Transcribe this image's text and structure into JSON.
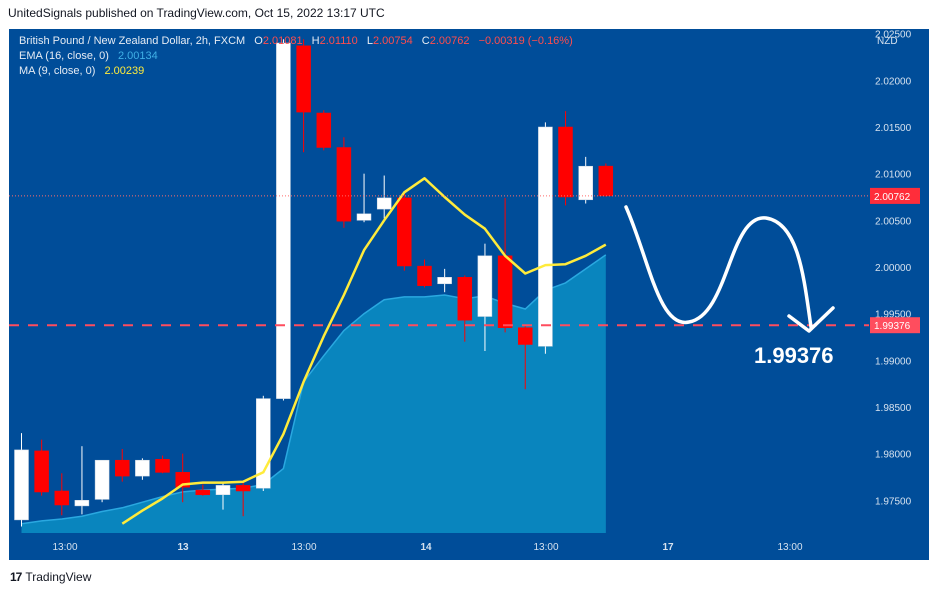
{
  "header": {
    "publisher": "UnitedSignals published on TradingView.com, Oct 15, 2022 13:17 UTC"
  },
  "legend": {
    "symbol": "British Pound / New Zealand Dollar, 2h, FXCM",
    "o_label": "O",
    "o": "2.01081",
    "h_label": "H",
    "h": "2.01110",
    "l_label": "L",
    "l": "2.00754",
    "c_label": "C",
    "c": "2.00762",
    "change": "−0.00319 (−0.16%)",
    "ema_label": "EMA (16, close, 0)",
    "ema_value": "2.00134",
    "ma_label": "MA (9, close, 0)",
    "ma_value": "2.00239"
  },
  "footer": {
    "brand": "TradingView",
    "logo_glyph": "17"
  },
  "colors": {
    "background": "#004d99",
    "bull": "#ffffff",
    "bear": "#ff0000",
    "ema_fill": "#0a8fc4",
    "ma_line": "#ffeb3b",
    "target": "#ff4d5e",
    "last_price_tag": "#ff2d3a",
    "projection": "#ffffff"
  },
  "chart_data": {
    "type": "candlestick",
    "title": "",
    "currency": "NZD",
    "ylim": [
      1.9715,
      2.0255
    ],
    "y_ticks": [
      "2.02500",
      "2.02000",
      "2.01500",
      "2.01000",
      "2.00500",
      "2.00000",
      "1.99500",
      "1.99000",
      "1.98500",
      "1.98000",
      "1.97500"
    ],
    "x_ticks": [
      "13:00",
      "13",
      "13:00",
      "14",
      "13:00",
      "17",
      "13:00"
    ],
    "last_price": {
      "value": 2.00762,
      "label": "2.00762"
    },
    "target": {
      "value": 1.99376,
      "label": "1.99376",
      "annotation": "1.99376"
    },
    "candles": [
      {
        "o": 1.9729,
        "h": 1.9822,
        "l": 1.9722,
        "c": 1.9804
      },
      {
        "o": 1.9803,
        "h": 1.9815,
        "l": 1.9755,
        "c": 1.9759
      },
      {
        "o": 1.976,
        "h": 1.9779,
        "l": 1.9734,
        "c": 1.9745
      },
      {
        "o": 1.9744,
        "h": 1.9808,
        "l": 1.9735,
        "c": 1.975
      },
      {
        "o": 1.9751,
        "h": 1.9792,
        "l": 1.9748,
        "c": 1.9793
      },
      {
        "o": 1.9793,
        "h": 1.9805,
        "l": 1.977,
        "c": 1.9776
      },
      {
        "o": 1.9776,
        "h": 1.9795,
        "l": 1.9772,
        "c": 1.9793
      },
      {
        "o": 1.9794,
        "h": 1.9798,
        "l": 1.9779,
        "c": 1.978
      },
      {
        "o": 1.978,
        "h": 1.98,
        "l": 1.9748,
        "c": 1.9764
      },
      {
        "o": 1.9761,
        "h": 1.9767,
        "l": 1.9755,
        "c": 1.9756
      },
      {
        "o": 1.9756,
        "h": 1.977,
        "l": 1.974,
        "c": 1.9766
      },
      {
        "o": 1.9766,
        "h": 1.9771,
        "l": 1.9733,
        "c": 1.976
      },
      {
        "o": 1.9763,
        "h": 1.9862,
        "l": 1.976,
        "c": 1.9859
      },
      {
        "o": 1.9859,
        "h": 2.0244,
        "l": 1.9857,
        "c": 2.024
      },
      {
        "o": 2.0237,
        "h": 2.0244,
        "l": 2.0123,
        "c": 2.0166
      },
      {
        "o": 2.0165,
        "h": 2.0168,
        "l": 2.0125,
        "c": 2.0128
      },
      {
        "o": 2.0128,
        "h": 2.0139,
        "l": 2.0042,
        "c": 2.0049
      },
      {
        "o": 2.005,
        "h": 2.01,
        "l": 2.0048,
        "c": 2.0057
      },
      {
        "o": 2.0062,
        "h": 2.0098,
        "l": 2.0052,
        "c": 2.0074
      },
      {
        "o": 2.0074,
        "h": 2.008,
        "l": 1.9996,
        "c": 2.0001
      },
      {
        "o": 2.0001,
        "h": 2.0008,
        "l": 1.9978,
        "c": 1.998
      },
      {
        "o": 1.9982,
        "h": 1.9998,
        "l": 1.9973,
        "c": 1.9989
      },
      {
        "o": 1.9989,
        "h": 1.9991,
        "l": 1.992,
        "c": 1.9943
      },
      {
        "o": 1.9947,
        "h": 2.0025,
        "l": 1.991,
        "c": 2.0012
      },
      {
        "o": 2.0012,
        "h": 2.0074,
        "l": 1.993,
        "c": 1.9935
      },
      {
        "o": 1.9935,
        "h": 1.9937,
        "l": 1.9869,
        "c": 1.9917
      },
      {
        "o": 1.9915,
        "h": 2.0155,
        "l": 1.9907,
        "c": 2.015
      },
      {
        "o": 2.015,
        "h": 2.0167,
        "l": 2.0066,
        "c": 2.0075
      },
      {
        "o": 2.0072,
        "h": 2.0118,
        "l": 2.0068,
        "c": 2.0108
      },
      {
        "o": 2.01081,
        "h": 2.0111,
        "l": 2.00754,
        "c": 2.00762
      }
    ],
    "series": [
      {
        "name": "EMA (16, close, 0)",
        "values": [
          1.9725,
          1.9728,
          1.973,
          1.9733,
          1.9738,
          1.9742,
          1.9748,
          1.9754,
          1.9759,
          1.9761,
          1.9762,
          1.9763,
          1.9767,
          1.9784,
          1.9877,
          1.9905,
          1.9932,
          1.995,
          1.9965,
          1.9968,
          1.9968,
          1.997,
          1.9966,
          1.9969,
          1.9961,
          1.9955,
          1.9975,
          1.9983,
          1.9998,
          2.0013
        ]
      },
      {
        "name": "MA (9, close, 0)",
        "values": [
          null,
          null,
          null,
          null,
          null,
          1.9725,
          1.9739,
          1.9752,
          1.9767,
          1.9769,
          1.9769,
          1.977,
          1.978,
          1.9821,
          1.9877,
          1.9926,
          1.997,
          2.0018,
          2.005,
          2.008,
          2.0095,
          2.0075,
          2.0056,
          2.0041,
          2.0012,
          1.9993,
          2.0002,
          2.0003,
          2.0012,
          2.0024
        ]
      }
    ]
  }
}
